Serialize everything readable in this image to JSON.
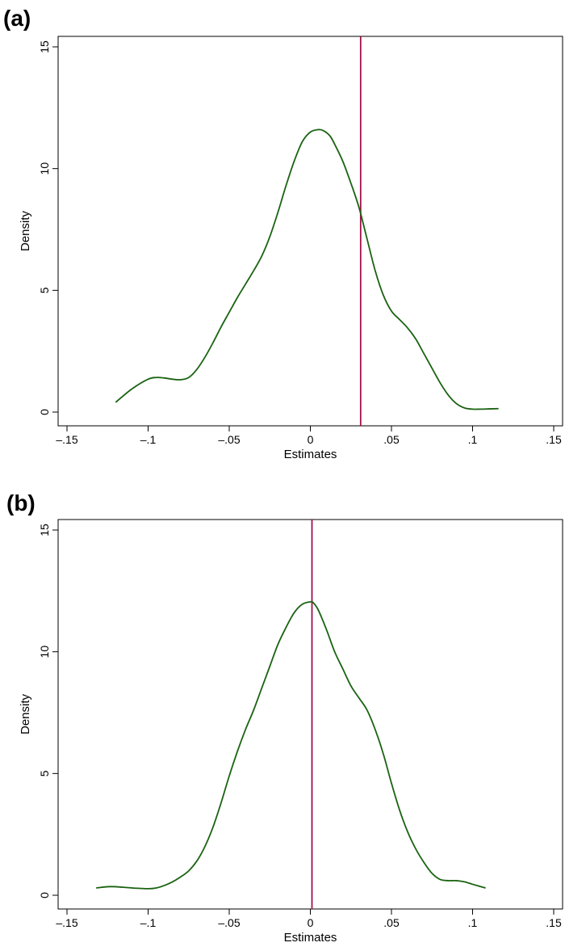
{
  "chart_data": [
    {
      "type": "line",
      "panel_label": "(a)",
      "xlabel": "Estimates",
      "ylabel": "Density",
      "xlim": [
        -0.15,
        0.15
      ],
      "ylim": [
        0,
        15
      ],
      "x_ticks": [
        -0.15,
        -0.1,
        -0.05,
        0,
        0.05,
        0.1,
        0.15
      ],
      "x_tick_labels": [
        "–.15",
        "–.1",
        "–.05",
        "0",
        ".05",
        ".1",
        ".15"
      ],
      "y_ticks": [
        0,
        5,
        10,
        15
      ],
      "y_tick_labels": [
        "0",
        "5",
        "10",
        "15"
      ],
      "grid": false,
      "reference_line_x": 0.031,
      "reference_line_color": "#a0104a",
      "series": [
        {
          "color": "#1a6312",
          "x": [
            -0.12,
            -0.11,
            -0.1,
            -0.095,
            -0.09,
            -0.085,
            -0.08,
            -0.075,
            -0.07,
            -0.065,
            -0.06,
            -0.055,
            -0.05,
            -0.045,
            -0.04,
            -0.035,
            -0.03,
            -0.025,
            -0.02,
            -0.015,
            -0.01,
            -0.005,
            0,
            0.005,
            0.008,
            0.012,
            0.015,
            0.02,
            0.025,
            0.03,
            0.035,
            0.04,
            0.045,
            0.05,
            0.055,
            0.06,
            0.065,
            0.07,
            0.075,
            0.08,
            0.085,
            0.09,
            0.095,
            0.1,
            0.105,
            0.11,
            0.116
          ],
          "y": [
            0.4,
            0.95,
            1.35,
            1.42,
            1.4,
            1.35,
            1.33,
            1.42,
            1.75,
            2.25,
            2.85,
            3.5,
            4.1,
            4.7,
            5.25,
            5.8,
            6.4,
            7.2,
            8.2,
            9.3,
            10.3,
            11.1,
            11.5,
            11.6,
            11.56,
            11.35,
            11.0,
            10.3,
            9.4,
            8.4,
            7.1,
            5.8,
            4.8,
            4.15,
            3.8,
            3.45,
            3.0,
            2.4,
            1.8,
            1.2,
            0.7,
            0.35,
            0.17,
            0.12,
            0.12,
            0.13,
            0.14
          ]
        }
      ]
    },
    {
      "type": "line",
      "panel_label": "(b)",
      "xlabel": "Estimates",
      "ylabel": "Density",
      "xlim": [
        -0.15,
        0.15
      ],
      "ylim": [
        0,
        15
      ],
      "x_ticks": [
        -0.15,
        -0.1,
        -0.05,
        0,
        0.05,
        0.1,
        0.15
      ],
      "x_tick_labels": [
        "–.15",
        "–.1",
        "–.05",
        "0",
        ".05",
        ".1",
        ".15"
      ],
      "y_ticks": [
        0,
        5,
        10,
        15
      ],
      "y_tick_labels": [
        "0",
        "5",
        "10",
        "15"
      ],
      "grid": false,
      "reference_line_x": 0.001,
      "reference_line_color": "#a0104a",
      "series": [
        {
          "color": "#1a6312",
          "x": [
            -0.132,
            -0.125,
            -0.12,
            -0.11,
            -0.1,
            -0.095,
            -0.09,
            -0.085,
            -0.08,
            -0.075,
            -0.07,
            -0.065,
            -0.06,
            -0.055,
            -0.05,
            -0.045,
            -0.04,
            -0.035,
            -0.03,
            -0.025,
            -0.02,
            -0.015,
            -0.01,
            -0.005,
            0,
            0.002,
            0.005,
            0.01,
            0.015,
            0.02,
            0.025,
            0.03,
            0.035,
            0.04,
            0.045,
            0.05,
            0.055,
            0.06,
            0.065,
            0.07,
            0.075,
            0.08,
            0.085,
            0.09,
            0.095,
            0.1,
            0.108
          ],
          "y": [
            0.3,
            0.35,
            0.35,
            0.3,
            0.27,
            0.3,
            0.4,
            0.55,
            0.75,
            1.0,
            1.4,
            2.0,
            2.8,
            3.8,
            4.9,
            5.9,
            6.8,
            7.6,
            8.5,
            9.4,
            10.3,
            11.0,
            11.6,
            11.95,
            12.05,
            12.0,
            11.7,
            10.9,
            10.0,
            9.3,
            8.6,
            8.1,
            7.6,
            6.8,
            5.8,
            4.6,
            3.5,
            2.6,
            1.9,
            1.35,
            0.9,
            0.65,
            0.6,
            0.6,
            0.55,
            0.45,
            0.3
          ]
        }
      ]
    }
  ]
}
